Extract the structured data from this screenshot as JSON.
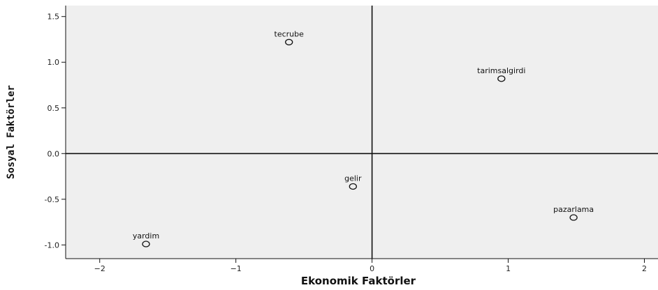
{
  "chart_data": {
    "type": "scatter",
    "title": "",
    "xlabel": "Ekonomik Faktörler",
    "ylabel": "Sosyal Faktörler",
    "xlim": [
      -2.25,
      2.1
    ],
    "ylim": [
      -1.15,
      1.62
    ],
    "xticks": [
      -2,
      -1,
      0,
      1,
      2
    ],
    "yticks": [
      -1.0,
      -0.5,
      0.0,
      0.5,
      1.0,
      1.5
    ],
    "xtick_labels": [
      "−2",
      "−1",
      "0",
      "1",
      "2"
    ],
    "ytick_labels": [
      "-1.0",
      "-0.5",
      "0.0",
      "0.5",
      "1.0",
      "1.5"
    ],
    "grid": false,
    "reference_lines": {
      "x": 0,
      "y": 0
    },
    "colors": {
      "plot_background": "#efefef",
      "marker": "#111111",
      "axis": "#111111"
    },
    "points": [
      {
        "label": "tecrube",
        "x": -0.61,
        "y": 1.22
      },
      {
        "label": "tarimsalgirdi",
        "x": 0.95,
        "y": 0.82
      },
      {
        "label": "gelir",
        "x": -0.14,
        "y": -0.36
      },
      {
        "label": "pazarlama",
        "x": 1.48,
        "y": -0.7
      },
      {
        "label": "yardim",
        "x": -1.66,
        "y": -0.99
      }
    ]
  }
}
